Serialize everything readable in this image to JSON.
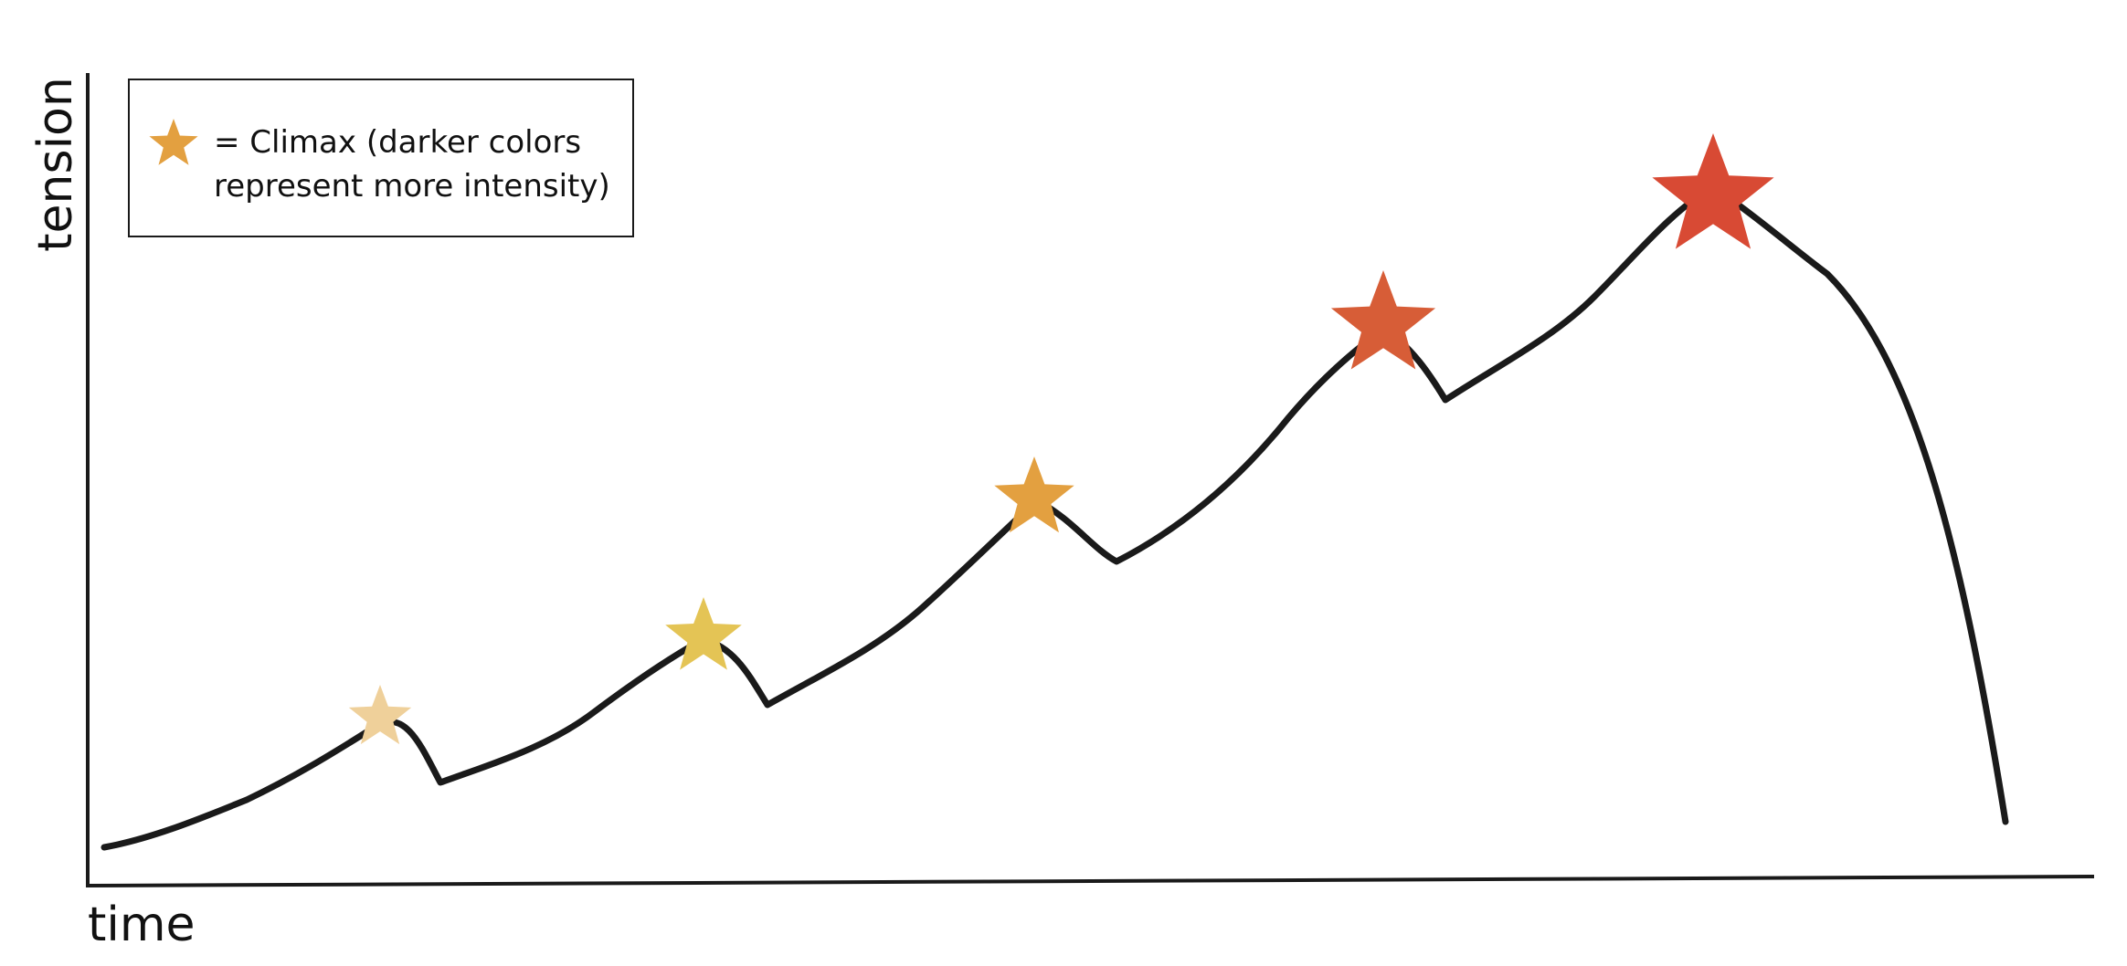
{
  "colors": {
    "background": "#ffffff",
    "curve": "#1a1a1a",
    "axis": "#1a1a1a",
    "legend_star": "#e3a040"
  },
  "chart_data": {
    "type": "line",
    "xlabel": "time",
    "ylabel": "tension",
    "grid": false,
    "legend_placement": "top-left",
    "legend": {
      "icon": "star-icon",
      "line1": "= Climax (darker colors",
      "line2": "represent more intensity)"
    },
    "climaxes": [
      {
        "name": "climax-1",
        "color": "#efd09a"
      },
      {
        "name": "climax-2",
        "color": "#e4c455"
      },
      {
        "name": "climax-3",
        "color": "#e3a040"
      },
      {
        "name": "climax-4",
        "color": "#d75d37"
      },
      {
        "name": "climax-5",
        "color": "#d84a34"
      }
    ]
  }
}
